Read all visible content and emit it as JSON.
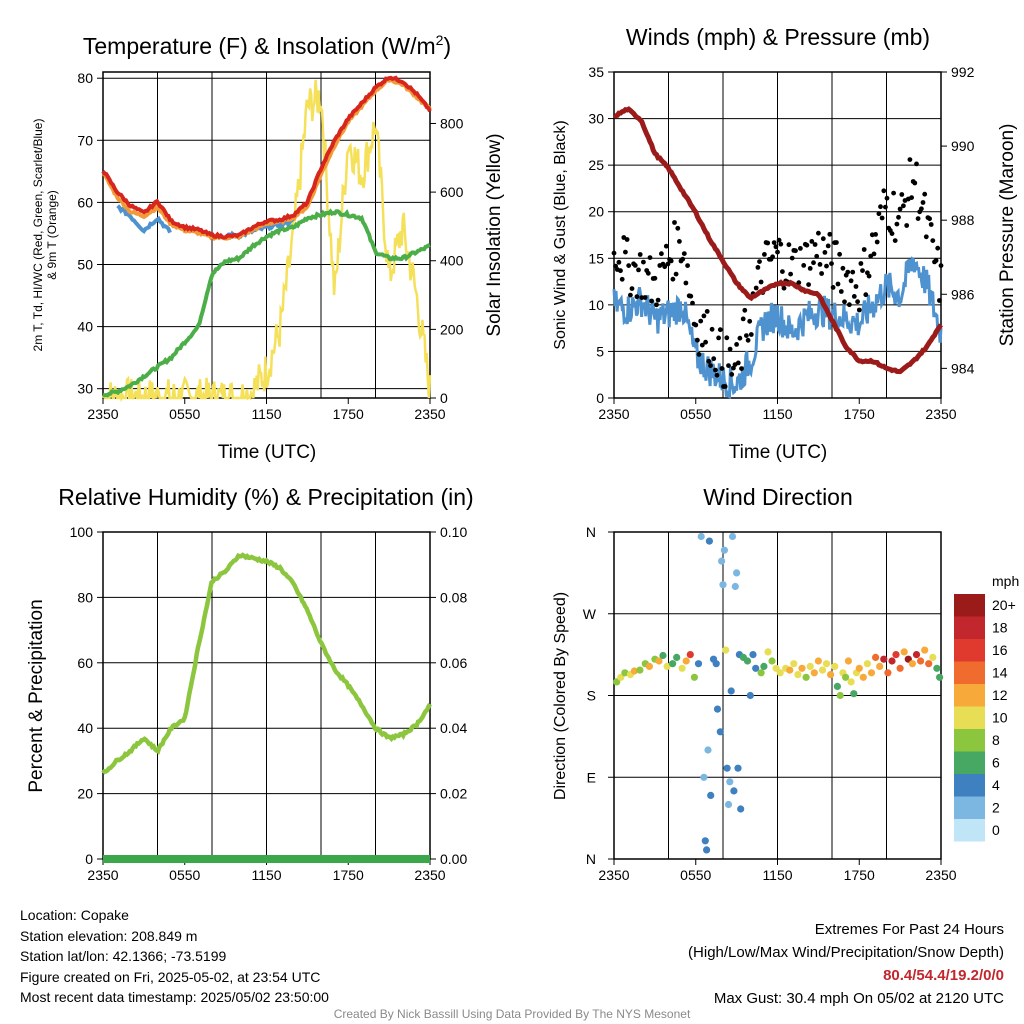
{
  "colors": {
    "temp_red": "#d7261e",
    "temp_orange": "#f29a38",
    "hiwc_scarlet": "#e34a2a",
    "dewpoint_green": "#4cae48",
    "blue": "#4e93cf",
    "solar_yellow": "#f5e05a",
    "gust_black": "#000000",
    "pressure_maroon": "#9b1b1b",
    "rh_green": "#8cc63f",
    "precip_green": "#3aa84a"
  },
  "chart_data": [
    {
      "id": "temp",
      "type": "line",
      "title": "Temperature (F) & Insolation (W/m²)",
      "title_main": "Temperature (F) & Insolation (W/m",
      "title_sup": "2",
      "title_end": ")",
      "xlabel": "Time (UTC)",
      "ylabel_line1": "2m T, Td, HI/WC (Red, Green, Scarlet/Blue)",
      "ylabel_line2": "& 9m T (Orange)",
      "y2label": "Solar Insolation (Yellow)",
      "x_ticks": [
        "2350",
        "0550",
        "1150",
        "1750",
        "2350"
      ],
      "ylim": [
        28.5,
        81
      ],
      "y_ticks": [
        30,
        40,
        50,
        60,
        70,
        80
      ],
      "y2lim": [
        0,
        950
      ],
      "y2_ticks": [
        0,
        200,
        400,
        600,
        800
      ],
      "grid": true,
      "x_hours": [
        0,
        1,
        2,
        3,
        4,
        5,
        6,
        7,
        8,
        9,
        10,
        11,
        12,
        13,
        14,
        15,
        16,
        17,
        18,
        19,
        20,
        21,
        22,
        23,
        24
      ],
      "series": [
        {
          "key": "temp_2m",
          "values": [
            65.2,
            61.8,
            59.5,
            58.3,
            60.2,
            57.0,
            56.0,
            55.6,
            54.7,
            54.5,
            54.7,
            56.0,
            57.0,
            57.2,
            58.0,
            60.0,
            65.5,
            70.0,
            73.5,
            76.0,
            78.5,
            80.2,
            79.5,
            77.5,
            74.8
          ]
        },
        {
          "key": "temp_9m",
          "values": [
            64.8,
            61.0,
            58.5,
            57.8,
            59.2,
            56.5,
            55.5,
            55.1,
            54.4,
            54.3,
            54.5,
            55.6,
            56.6,
            56.9,
            57.6,
            59.3,
            64.5,
            69.2,
            73.0,
            75.5,
            78.0,
            79.8,
            79.0,
            77.0,
            75.0
          ]
        },
        {
          "key": "windchill",
          "values": [
            null,
            59.5,
            57.8,
            55.5,
            57.5,
            55.0,
            null,
            null,
            null,
            54.8,
            54.6,
            55.4,
            56.0,
            56.4,
            57.1,
            null,
            null,
            null,
            null,
            null,
            null,
            null,
            null,
            null,
            null
          ]
        },
        {
          "key": "dewpoint",
          "values": [
            29.0,
            29.5,
            30.5,
            32.0,
            33.5,
            35.0,
            37.5,
            40.0,
            48.5,
            50.5,
            51.0,
            53.0,
            54.5,
            55.5,
            56.0,
            57.5,
            58.0,
            58.5,
            58.0,
            57.5,
            52.0,
            51.0,
            51.0,
            52.0,
            53.0
          ]
        },
        {
          "key": "solar",
          "values": [
            0,
            0,
            0,
            0,
            0,
            0,
            0,
            0,
            0,
            0,
            0,
            20,
            80,
            200,
            480,
            850,
            880,
            300,
            750,
            650,
            800,
            350,
            500,
            300,
            20
          ]
        }
      ]
    },
    {
      "id": "wind",
      "type": "scatter",
      "title": "Winds (mph) & Pressure (mb)",
      "xlabel": "Time (UTC)",
      "ylabel": "Sonic Wind & Gust (Blue, Black)",
      "y2label": "Station Pressure (Maroon)",
      "x_ticks": [
        "2350",
        "0550",
        "1150",
        "1750",
        "2350"
      ],
      "ylim": [
        0,
        35
      ],
      "y_ticks": [
        0,
        5,
        10,
        15,
        20,
        25,
        30,
        35
      ],
      "y2lim": [
        983.2,
        992
      ],
      "y2_ticks": [
        984,
        986,
        988,
        990,
        992
      ],
      "grid": true,
      "x_hours": [
        0,
        1,
        2,
        3,
        4,
        5,
        6,
        7,
        8,
        9,
        10,
        11,
        12,
        13,
        14,
        15,
        16,
        17,
        18,
        19,
        20,
        21,
        22,
        23,
        24
      ],
      "series": [
        {
          "key": "wind_speed",
          "values": [
            10.0,
            9.5,
            10.5,
            8.5,
            9.0,
            10.0,
            4.5,
            3.0,
            2.0,
            1.5,
            4.0,
            8.0,
            9.0,
            7.0,
            8.5,
            9.5,
            9.0,
            8.5,
            8.0,
            10.0,
            12.0,
            11.0,
            15.0,
            12.0,
            7.0
          ]
        },
        {
          "key": "wind_gust",
          "values": [
            16.5,
            14.0,
            13.5,
            12.0,
            15.0,
            17.0,
            8.0,
            6.5,
            4.0,
            3.0,
            9.0,
            14.0,
            15.5,
            14.0,
            14.5,
            16.0,
            14.5,
            13.0,
            12.0,
            16.0,
            21.0,
            19.0,
            24.0,
            18.0,
            12.0
          ]
        },
        {
          "key": "pressure",
          "values": [
            990.8,
            991.0,
            990.7,
            989.8,
            989.4,
            988.8,
            988.2,
            987.5,
            986.9,
            986.3,
            985.9,
            986.1,
            986.3,
            986.3,
            986.1,
            986.0,
            985.3,
            984.6,
            984.2,
            984.2,
            984.0,
            983.9,
            984.2,
            984.6,
            985.2
          ]
        }
      ]
    },
    {
      "id": "rh",
      "type": "line",
      "title": "Relative Humidity (%) & Precipitation (in)",
      "ylabel": "Percent & Precipitation",
      "x_ticks": [
        "2350",
        "0550",
        "1150",
        "1750",
        "2350"
      ],
      "ylim": [
        0,
        100
      ],
      "y_ticks": [
        0,
        20,
        40,
        60,
        80,
        100
      ],
      "y2lim": [
        0,
        0.1
      ],
      "y2_ticks": [
        "0.00",
        "0.02",
        "0.04",
        "0.06",
        "0.08",
        "0.10"
      ],
      "grid": true,
      "x_hours": [
        0,
        1,
        2,
        3,
        4,
        5,
        6,
        7,
        8,
        9,
        10,
        11,
        12,
        13,
        14,
        15,
        16,
        17,
        18,
        19,
        20,
        21,
        22,
        23,
        24
      ],
      "series": [
        {
          "key": "rh",
          "values": [
            26.0,
            30.0,
            33.0,
            37.0,
            33.0,
            40.0,
            43.0,
            65.0,
            85.0,
            88.0,
            93.0,
            92.0,
            91.0,
            89.0,
            84.0,
            76.0,
            66.0,
            58.0,
            53.0,
            47.0,
            40.0,
            37.0,
            38.0,
            41.0,
            47.0
          ]
        },
        {
          "key": "precip",
          "values": [
            0,
            0,
            0,
            0,
            0,
            0,
            0,
            0,
            0,
            0,
            0,
            0,
            0,
            0,
            0,
            0,
            0,
            0,
            0,
            0,
            0,
            0,
            0,
            0,
            0
          ]
        }
      ]
    },
    {
      "id": "dir",
      "type": "scatter",
      "title": "Wind Direction",
      "ylabel": "Direction (Colored By Speed)",
      "x_ticks": [
        "2350",
        "0550",
        "1150",
        "1750",
        "2350"
      ],
      "y_ticks": [
        "N",
        "E",
        "S",
        "W",
        "N"
      ],
      "ylim": [
        0,
        360
      ],
      "grid": true,
      "points": [
        {
          "h": 0.2,
          "d": 195,
          "s": 8
        },
        {
          "h": 0.5,
          "d": 200,
          "s": 9
        },
        {
          "h": 0.8,
          "d": 205,
          "s": 7
        },
        {
          "h": 1.2,
          "d": 203,
          "s": 9
        },
        {
          "h": 1.5,
          "d": 207,
          "s": 11
        },
        {
          "h": 1.9,
          "d": 208,
          "s": 8
        },
        {
          "h": 2.3,
          "d": 215,
          "s": 7
        },
        {
          "h": 2.6,
          "d": 212,
          "s": 11
        },
        {
          "h": 3.0,
          "d": 220,
          "s": 8
        },
        {
          "h": 3.3,
          "d": 218,
          "s": 12
        },
        {
          "h": 3.6,
          "d": 224,
          "s": 6
        },
        {
          "h": 3.9,
          "d": 212,
          "s": 10
        },
        {
          "h": 4.3,
          "d": 215,
          "s": 5
        },
        {
          "h": 4.6,
          "d": 222,
          "s": 6
        },
        {
          "h": 5.0,
          "d": 210,
          "s": 10
        },
        {
          "h": 5.3,
          "d": 218,
          "s": 12
        },
        {
          "h": 5.6,
          "d": 225,
          "s": 16
        },
        {
          "h": 5.9,
          "d": 200,
          "s": 7
        },
        {
          "h": 6.2,
          "d": 215,
          "s": 4
        },
        {
          "h": 6.4,
          "d": 355,
          "s": 2
        },
        {
          "h": 6.6,
          "d": 90,
          "s": 2
        },
        {
          "h": 6.7,
          "d": 20,
          "s": 3
        },
        {
          "h": 6.8,
          "d": 10,
          "s": 3
        },
        {
          "h": 6.9,
          "d": 120,
          "s": 2
        },
        {
          "h": 7.0,
          "d": 350,
          "s": 3
        },
        {
          "h": 7.1,
          "d": 70,
          "s": 3
        },
        {
          "h": 7.3,
          "d": 220,
          "s": 4
        },
        {
          "h": 7.5,
          "d": 215,
          "s": 3
        },
        {
          "h": 7.6,
          "d": 165,
          "s": 3
        },
        {
          "h": 7.8,
          "d": 140,
          "s": 3
        },
        {
          "h": 7.9,
          "d": 328,
          "s": 1
        },
        {
          "h": 8.0,
          "d": 302,
          "s": 2
        },
        {
          "h": 8.1,
          "d": 340,
          "s": 1
        },
        {
          "h": 8.2,
          "d": 230,
          "s": 10
        },
        {
          "h": 8.3,
          "d": 100,
          "s": 3
        },
        {
          "h": 8.4,
          "d": 60,
          "s": 2
        },
        {
          "h": 8.5,
          "d": 85,
          "s": 2
        },
        {
          "h": 8.6,
          "d": 185,
          "s": 4
        },
        {
          "h": 8.7,
          "d": 355,
          "s": 1
        },
        {
          "h": 8.8,
          "d": 75,
          "s": 3
        },
        {
          "h": 8.9,
          "d": 300,
          "s": 1
        },
        {
          "h": 9.0,
          "d": 315,
          "s": 1
        },
        {
          "h": 9.1,
          "d": 100,
          "s": 3
        },
        {
          "h": 9.2,
          "d": 225,
          "s": 4
        },
        {
          "h": 9.3,
          "d": 55,
          "s": 3
        },
        {
          "h": 9.5,
          "d": 222,
          "s": 5
        },
        {
          "h": 9.8,
          "d": 218,
          "s": 6
        },
        {
          "h": 10.0,
          "d": 180,
          "s": 4
        },
        {
          "h": 10.2,
          "d": 225,
          "s": 3
        },
        {
          "h": 10.4,
          "d": 210,
          "s": 4
        },
        {
          "h": 10.8,
          "d": 205,
          "s": 8
        },
        {
          "h": 11.0,
          "d": 212,
          "s": 6
        },
        {
          "h": 11.3,
          "d": 228,
          "s": 10
        },
        {
          "h": 11.6,
          "d": 218,
          "s": 7
        },
        {
          "h": 11.9,
          "d": 210,
          "s": 10
        },
        {
          "h": 12.2,
          "d": 205,
          "s": 9
        },
        {
          "h": 12.6,
          "d": 210,
          "s": 10
        },
        {
          "h": 12.9,
          "d": 208,
          "s": 11
        },
        {
          "h": 13.2,
          "d": 215,
          "s": 9
        },
        {
          "h": 13.5,
          "d": 203,
          "s": 10
        },
        {
          "h": 13.8,
          "d": 210,
          "s": 11
        },
        {
          "h": 14.1,
          "d": 200,
          "s": 8
        },
        {
          "h": 14.4,
          "d": 212,
          "s": 10
        },
        {
          "h": 14.7,
          "d": 205,
          "s": 12
        },
        {
          "h": 15.0,
          "d": 218,
          "s": 11
        },
        {
          "h": 15.3,
          "d": 208,
          "s": 9
        },
        {
          "h": 15.6,
          "d": 215,
          "s": 10
        },
        {
          "h": 15.9,
          "d": 203,
          "s": 11
        },
        {
          "h": 16.2,
          "d": 212,
          "s": 9
        },
        {
          "h": 16.4,
          "d": 190,
          "s": 6
        },
        {
          "h": 16.6,
          "d": 180,
          "s": 7
        },
        {
          "h": 16.8,
          "d": 205,
          "s": 10
        },
        {
          "h": 17.0,
          "d": 200,
          "s": 8
        },
        {
          "h": 17.2,
          "d": 218,
          "s": 12
        },
        {
          "h": 17.4,
          "d": 195,
          "s": 9
        },
        {
          "h": 17.6,
          "d": 182,
          "s": 6
        },
        {
          "h": 17.8,
          "d": 205,
          "s": 10
        },
        {
          "h": 18.0,
          "d": 210,
          "s": 11
        },
        {
          "h": 18.3,
          "d": 200,
          "s": 12
        },
        {
          "h": 18.6,
          "d": 215,
          "s": 10
        },
        {
          "h": 18.9,
          "d": 205,
          "s": 11
        },
        {
          "h": 19.2,
          "d": 222,
          "s": 13
        },
        {
          "h": 19.5,
          "d": 212,
          "s": 12
        },
        {
          "h": 19.8,
          "d": 220,
          "s": 17
        },
        {
          "h": 20.1,
          "d": 205,
          "s": 14
        },
        {
          "h": 20.4,
          "d": 218,
          "s": 18
        },
        {
          "h": 20.7,
          "d": 225,
          "s": 16
        },
        {
          "h": 21.0,
          "d": 210,
          "s": 14
        },
        {
          "h": 21.3,
          "d": 228,
          "s": 12
        },
        {
          "h": 21.6,
          "d": 220,
          "s": 19
        },
        {
          "h": 21.9,
          "d": 215,
          "s": 11
        },
        {
          "h": 22.2,
          "d": 225,
          "s": 17
        },
        {
          "h": 22.5,
          "d": 218,
          "s": 13
        },
        {
          "h": 22.8,
          "d": 230,
          "s": 11
        },
        {
          "h": 23.1,
          "d": 215,
          "s": 14
        },
        {
          "h": 23.4,
          "d": 222,
          "s": 9
        },
        {
          "h": 23.7,
          "d": 210,
          "s": 6
        },
        {
          "h": 23.9,
          "d": 200,
          "s": 5
        }
      ],
      "legend": {
        "title": "mph",
        "labels": [
          "20+",
          "18",
          "16",
          "14",
          "12",
          "10",
          "8",
          "6",
          "4",
          "2",
          "0"
        ],
        "colors": [
          "#9b1b1b",
          "#c1272d",
          "#e03a2f",
          "#f06b2e",
          "#f7a93a",
          "#e7de55",
          "#8cc63f",
          "#46a862",
          "#3f80c0",
          "#7bb7e0",
          "#bfe5f7"
        ]
      }
    }
  ],
  "info": {
    "location": "Location: Copake",
    "elevation": "Station elevation: 208.849 m",
    "latlon": "Station lat/lon: 42.1366; -73.5199",
    "created": "Figure created on Fri, 2025-05-02, at 23:54 UTC",
    "recent": "Most recent data timestamp: 2025/05/02 23:50:00"
  },
  "extremes": {
    "title": "Extremes For Past 24 Hours",
    "subtitle": "(High/Low/Max Wind/Precipitation/Snow Depth)",
    "values": "80.4/54.4/19.2/0/0",
    "max_gust": "Max Gust: 30.4 mph On 05/02 at 2120 UTC"
  },
  "credit": "Created By Nick Bassill Using Data Provided By The NYS Mesonet"
}
